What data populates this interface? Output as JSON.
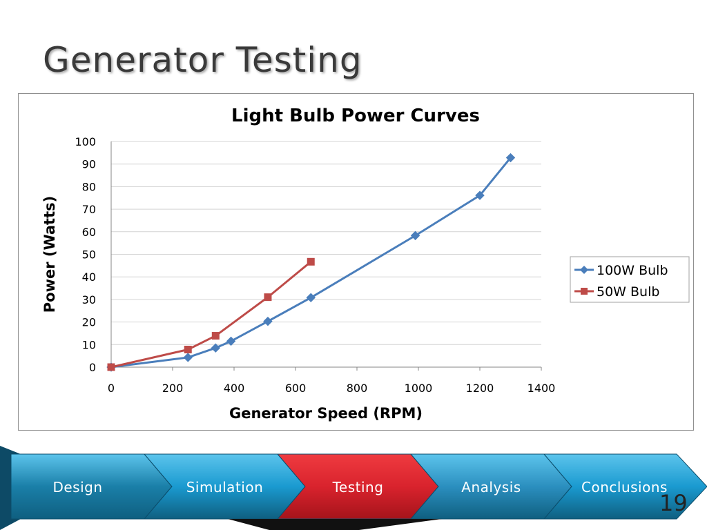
{
  "slide": {
    "title": "Generator Testing",
    "page_number": "19"
  },
  "nav": {
    "items": [
      {
        "label": "Design",
        "color": "#1a7fa8",
        "active": false
      },
      {
        "label": "Simulation",
        "color": "#1a9ad0",
        "active": false
      },
      {
        "label": "Testing",
        "color": "#d9232d",
        "active": true
      },
      {
        "label": "Analysis",
        "color": "#2b8fbf",
        "active": false
      },
      {
        "label": "Conclusions",
        "color": "#1a9ad0",
        "active": false
      }
    ]
  },
  "chart_data": {
    "type": "line",
    "title": "Light Bulb Power Curves",
    "xlabel": "Generator Speed (RPM)",
    "ylabel": "Power (Watts)",
    "xlim": [
      0,
      1400
    ],
    "ylim": [
      0,
      100
    ],
    "x_ticks": [
      "0",
      "200",
      "400",
      "600",
      "800",
      "1000",
      "1200",
      "1400"
    ],
    "y_ticks": [
      "0",
      "10",
      "20",
      "30",
      "40",
      "50",
      "60",
      "70",
      "80",
      "90",
      "100"
    ],
    "grid": "horizontal",
    "legend_position": "right",
    "series": [
      {
        "name": "100W Bulb",
        "color": "#4a7ebb",
        "marker": "diamond",
        "points": [
          [
            0,
            0
          ],
          [
            250,
            4.3
          ],
          [
            340,
            8.5
          ],
          [
            390,
            11.5
          ],
          [
            510,
            20.3
          ],
          [
            650,
            30.8
          ],
          [
            990,
            58.3
          ],
          [
            1200,
            76.1
          ],
          [
            1300,
            92.8
          ]
        ]
      },
      {
        "name": "50W Bulb",
        "color": "#be4b48",
        "marker": "square",
        "points": [
          [
            0,
            0
          ],
          [
            250,
            7.8
          ],
          [
            340,
            13.9
          ],
          [
            510,
            31.0
          ],
          [
            650,
            46.7
          ]
        ]
      }
    ]
  }
}
